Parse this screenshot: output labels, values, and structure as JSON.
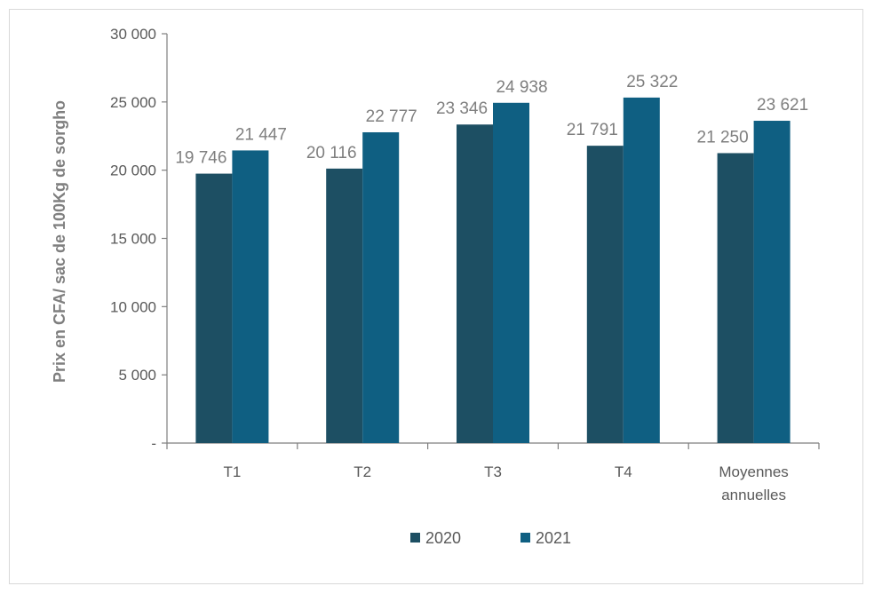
{
  "chart_data": {
    "type": "bar",
    "ylabel": "Prix en CFA/ sac de 100Kg de sorgho",
    "ylim": [
      0,
      30000
    ],
    "y_ticks": [
      {
        "value": 0,
        "label": "-"
      },
      {
        "value": 5000,
        "label": "5 000"
      },
      {
        "value": 10000,
        "label": "10 000"
      },
      {
        "value": 15000,
        "label": "15 000"
      },
      {
        "value": 20000,
        "label": "20 000"
      },
      {
        "value": 25000,
        "label": "25 000"
      },
      {
        "value": 30000,
        "label": "30 000"
      }
    ],
    "categories": [
      {
        "line1": "T1",
        "line2": ""
      },
      {
        "line1": "T2",
        "line2": ""
      },
      {
        "line1": "T3",
        "line2": ""
      },
      {
        "line1": "T4",
        "line2": ""
      },
      {
        "line1": "Moyennes",
        "line2": "annuelles"
      }
    ],
    "series": [
      {
        "name": "2020",
        "color": "#1d4f63",
        "values": [
          19746,
          20116,
          23346,
          21791,
          21250
        ],
        "labels": [
          "19 746",
          "20 116",
          "23 346",
          "21 791",
          "21 250"
        ]
      },
      {
        "name": "2021",
        "color": "#0f5f82",
        "values": [
          21447,
          22777,
          24938,
          25322,
          23621
        ],
        "labels": [
          "21 447",
          "22 777",
          "24 938",
          "25 322",
          "23 621"
        ]
      }
    ],
    "grid": false,
    "legend": "bottom-center"
  }
}
